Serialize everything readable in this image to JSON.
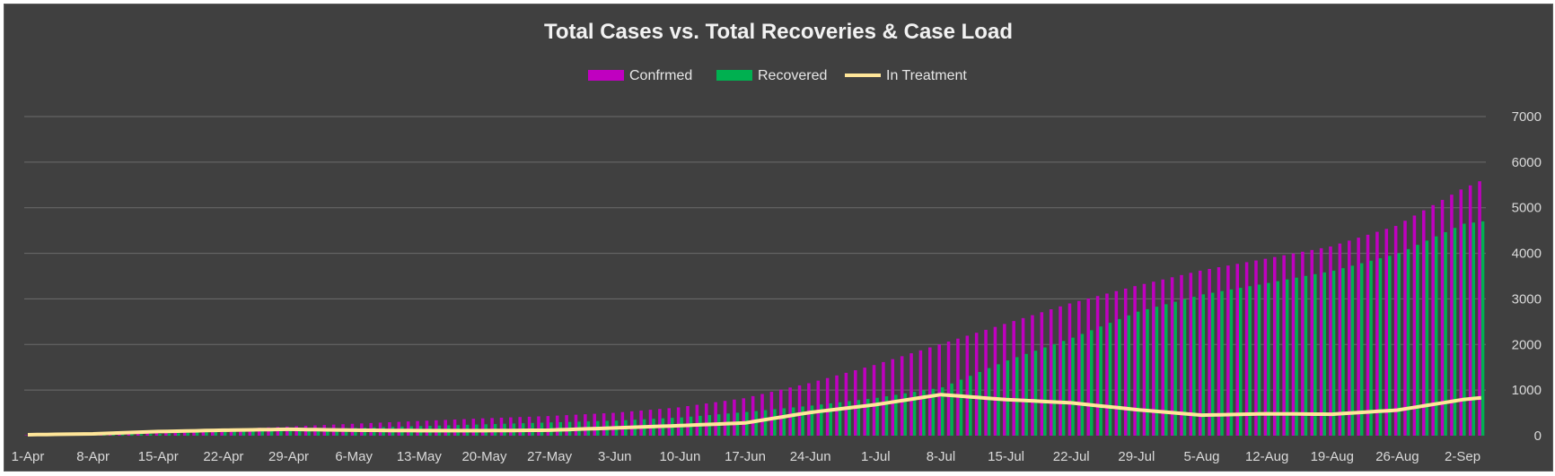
{
  "chart_data": {
    "type": "bar",
    "title": "Total Cases vs. Total Recoveries & Case Load",
    "legend_position": "top",
    "grid": true,
    "ylim": [
      0,
      7000
    ],
    "y_axis_side": "right",
    "y_ticks": [
      "0",
      "1000",
      "2000",
      "3000",
      "4000",
      "5000",
      "6000",
      "7000"
    ],
    "x_tick_labels": [
      "1-Apr",
      "8-Apr",
      "15-Apr",
      "22-Apr",
      "29-Apr",
      "6-May",
      "13-May",
      "20-May",
      "27-May",
      "3-Jun",
      "10-Jun",
      "17-Jun",
      "24-Jun",
      "1-Jul",
      "8-Jul",
      "15-Jul",
      "22-Jul",
      "29-Jul",
      "5-Aug",
      "12-Aug",
      "19-Aug",
      "26-Aug",
      "2-Sep"
    ],
    "x_start": "1-Apr",
    "x_end": "4-Sep",
    "weekly_dates": [
      "1-Apr",
      "8-Apr",
      "15-Apr",
      "22-Apr",
      "29-Apr",
      "6-May",
      "13-May",
      "20-May",
      "27-May",
      "3-Jun",
      "10-Jun",
      "17-Jun",
      "24-Jun",
      "1-Jul",
      "8-Jul",
      "15-Jul",
      "22-Jul",
      "29-Jul",
      "5-Aug",
      "12-Aug",
      "19-Aug",
      "26-Aug",
      "2-Sep"
    ],
    "end_date": "4-Sep",
    "series": [
      {
        "name": "Confrmed",
        "type": "bar",
        "color": "#c000c0",
        "weekly_values": [
          10,
          40,
          80,
          140,
          200,
          260,
          320,
          380,
          430,
          500,
          620,
          820,
          1150,
          1550,
          2000,
          2450,
          2900,
          3280,
          3620,
          3880,
          4150,
          4600,
          5400
        ],
        "end_value": 5580
      },
      {
        "name": "Recovered",
        "type": "bar",
        "color": "#00b050",
        "weekly_values": [
          5,
          15,
          40,
          90,
          130,
          170,
          210,
          250,
          290,
          330,
          400,
          520,
          660,
          830,
          1060,
          1650,
          2150,
          2720,
          3100,
          3350,
          3620,
          4000,
          4650
        ],
        "end_value": 4700
      },
      {
        "name": "In Treatment",
        "type": "line",
        "color": "#ffe699",
        "weekly_values": [
          20,
          40,
          90,
          120,
          140,
          120,
          110,
          110,
          120,
          170,
          220,
          280,
          510,
          680,
          900,
          790,
          720,
          570,
          450,
          480,
          470,
          560,
          790
        ],
        "end_value": 830
      }
    ]
  }
}
